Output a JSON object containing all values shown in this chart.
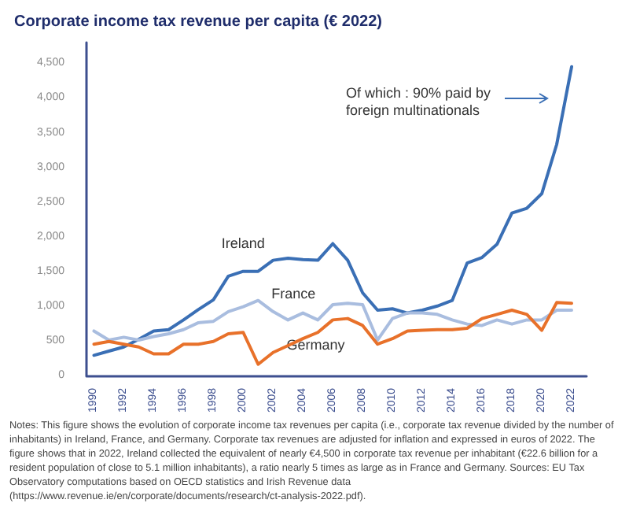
{
  "chart_data": {
    "type": "line",
    "title": "Corporate income tax revenue per capita (€ 2022)",
    "x": [
      1990,
      1991,
      1992,
      1993,
      1994,
      1995,
      1996,
      1997,
      1998,
      1999,
      2000,
      2001,
      2002,
      2003,
      2004,
      2005,
      2006,
      2007,
      2008,
      2009,
      2010,
      2011,
      2012,
      2013,
      2014,
      2015,
      2016,
      2017,
      2018,
      2019,
      2020,
      2021,
      2022
    ],
    "series": [
      {
        "name": "Ireland",
        "color": "#3a6fb5",
        "values": [
          290,
          350,
          410,
          520,
          640,
          660,
          800,
          950,
          1090,
          1430,
          1500,
          1500,
          1660,
          1690,
          1670,
          1660,
          1900,
          1660,
          1190,
          940,
          960,
          900,
          940,
          1000,
          1080,
          1620,
          1700,
          1890,
          2340,
          2410,
          2620,
          3330,
          4450
        ]
      },
      {
        "name": "France",
        "color": "#a9bddf",
        "values": [
          640,
          510,
          550,
          510,
          560,
          600,
          660,
          760,
          780,
          920,
          990,
          1080,
          920,
          800,
          900,
          800,
          1020,
          1040,
          1020,
          510,
          820,
          900,
          900,
          880,
          800,
          740,
          720,
          800,
          740,
          800,
          800,
          940,
          940
        ]
      },
      {
        "name": "Germany",
        "color": "#e8712a",
        "values": [
          450,
          490,
          450,
          410,
          310,
          310,
          450,
          450,
          490,
          600,
          620,
          160,
          330,
          430,
          530,
          620,
          800,
          820,
          720,
          450,
          530,
          640,
          650,
          660,
          660,
          680,
          820,
          880,
          940,
          880,
          650,
          1050,
          1040
        ]
      }
    ],
    "xlim": [
      1989.5,
      2023
    ],
    "xticks": [
      1990,
      1992,
      1994,
      1996,
      1998,
      2000,
      2002,
      2004,
      2006,
      2008,
      2010,
      2012,
      2014,
      2016,
      2018,
      2020,
      2022
    ],
    "ylim": [
      0,
      4800
    ],
    "yticks": [
      0,
      500,
      {
        "value": 1000,
        "label": "1,000"
      },
      {
        "value": 1500,
        "label": "1,500"
      },
      {
        "value": 2000,
        "label": "2,000"
      },
      {
        "value": 2500,
        "label": "2,500"
      },
      {
        "value": 3000,
        "label": "3,000"
      },
      {
        "value": 3500,
        "label": "3,500"
      },
      {
        "value": 4000,
        "label": "4,000"
      },
      {
        "value": 4500,
        "label": "4,500"
      }
    ],
    "grid": false,
    "legend": false,
    "marker": "none",
    "line_style": "solid",
    "annotations": [
      "Of which : 90% paid by foreign multinationals",
      "Notes: This figure shows the evolution of corporate income tax revenues per capita (i.e., corporate tax revenue divided by the number of inhabitants) in Ireland, France, and Germany. Corporate tax revenues are adjusted for inflation and expressed in euros of 2022. The figure shows that in 2022, Ireland collected the equivalent of nearly €4,500 in corporate tax revenue per inhabitant (€22.6 billion for a resident population of close to 5.1 million inhabitants), a ratio nearly 5 times as large as in France and Germany. Sources: EU Tax Observatory computations based on OECD statistics and Irish Revenue data (https://www.revenue.ie/en/corporate/documents/research/ct-analysis-2022.pdf)."
    ]
  }
}
